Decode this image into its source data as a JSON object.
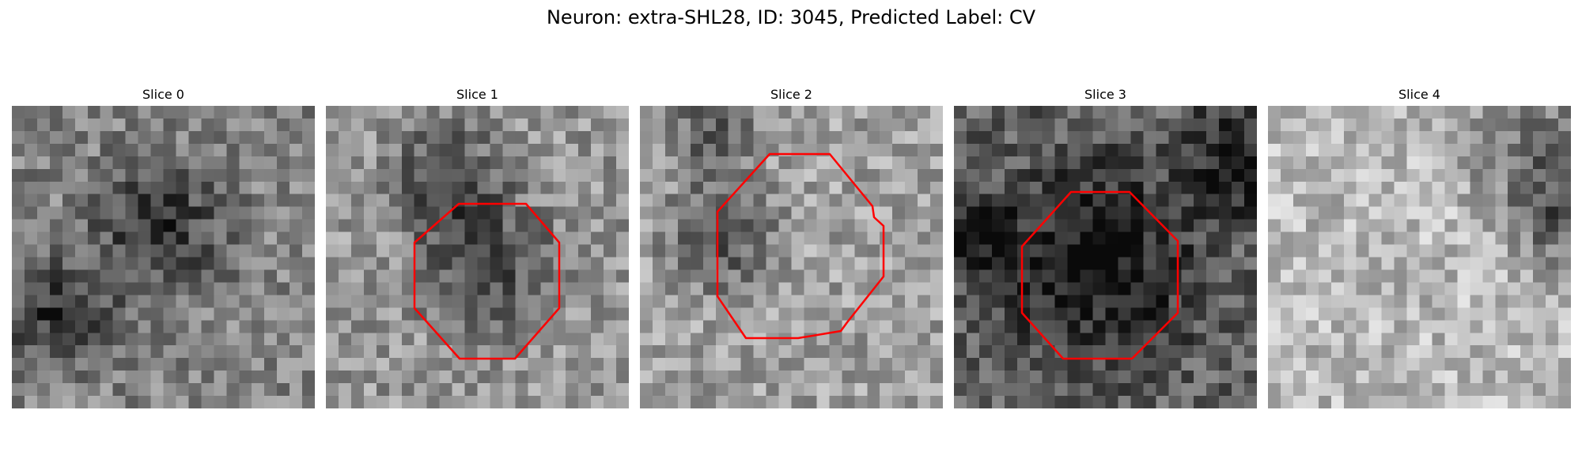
{
  "figure": {
    "title": "Neuron: extra-SHL28, ID: 3045, Predicted Label: CV"
  },
  "colors": {
    "outline": "#ff0000",
    "background": "#ffffff"
  },
  "image": {
    "colormap": "gray"
  },
  "panels": [
    {
      "title": "Slice 0",
      "has_outline": false,
      "seed": 11,
      "base_tone": 130,
      "dark_blob": "center-left"
    },
    {
      "title": "Slice 1",
      "has_outline": true,
      "seed": 23,
      "base_tone": 150,
      "dark_blob": "top"
    },
    {
      "title": "Slice 2",
      "has_outline": true,
      "seed": 37,
      "base_tone": 160,
      "dark_blob": "top-left"
    },
    {
      "title": "Slice 3",
      "has_outline": true,
      "seed": 41,
      "base_tone": 95,
      "dark_blob": "center"
    },
    {
      "title": "Slice 4",
      "has_outline": false,
      "seed": 53,
      "base_tone": 185,
      "dark_blob": "top-right"
    }
  ]
}
